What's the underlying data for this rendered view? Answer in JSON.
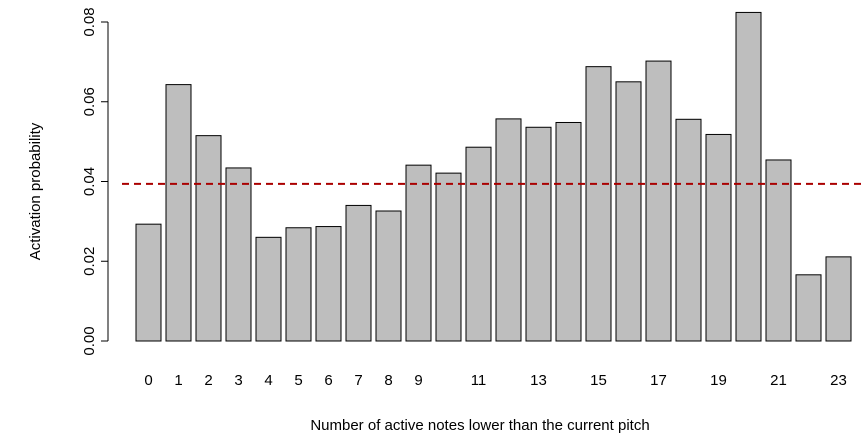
{
  "chart_data": {
    "type": "bar",
    "xlabel": "Number of active notes lower than the current pitch",
    "ylabel": "Activation probability",
    "categories": [
      "0",
      "1",
      "2",
      "3",
      "4",
      "5",
      "6",
      "7",
      "8",
      "9",
      "10",
      "11",
      "12",
      "13",
      "14",
      "15",
      "16",
      "17",
      "18",
      "19",
      "20",
      "21",
      "22",
      "23"
    ],
    "x_tick_labels_shown": [
      "0",
      "1",
      "2",
      "3",
      "4",
      "5",
      "6",
      "7",
      "8",
      "9",
      "11",
      "13",
      "15",
      "17",
      "19",
      "21",
      "23"
    ],
    "values": [
      0.0293,
      0.0643,
      0.0515,
      0.0434,
      0.026,
      0.0284,
      0.0287,
      0.034,
      0.0326,
      0.0441,
      0.0421,
      0.0486,
      0.0557,
      0.0536,
      0.0548,
      0.0688,
      0.065,
      0.0702,
      0.0556,
      0.0518,
      0.0824,
      0.0454,
      0.0166,
      0.0211
    ],
    "ylim": [
      0,
      0.08
    ],
    "y_ticks": [
      "0.00",
      "0.02",
      "0.04",
      "0.06",
      "0.08"
    ],
    "reference_line": {
      "value": 0.0394,
      "style": "dashed",
      "color": "#aa0000"
    },
    "bar_fill": "#bebebe",
    "bar_stroke": "#000000",
    "grid": false,
    "legend": "none"
  }
}
